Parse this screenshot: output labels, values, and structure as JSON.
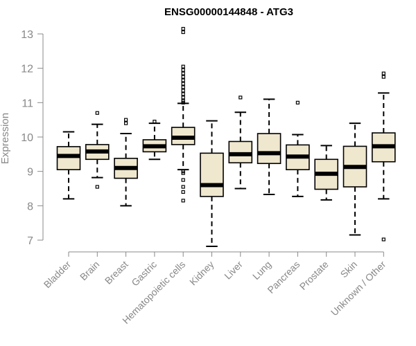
{
  "chart_data": {
    "type": "boxplot",
    "title": "ENSG00000144848 - ATG3",
    "xlabel": "",
    "ylabel": "Expression",
    "ylim": [
      6.7,
      13.2
    ],
    "yticks": [
      7,
      8,
      9,
      10,
      11,
      12,
      13
    ],
    "grid": false,
    "colors": {
      "box_fill": "#efe7ce",
      "box_stroke": "#000000",
      "axis": "#888888"
    },
    "categories": [
      "Bladder",
      "Brain",
      "Breast",
      "Gastric",
      "Hematopoietic cells",
      "Kidney",
      "Liver",
      "Lung",
      "Pancreas",
      "Prostate",
      "Skin",
      "Unknown / Other"
    ],
    "boxes": [
      {
        "whisker_low": 8.2,
        "q1": 9.05,
        "median": 9.45,
        "q3": 9.72,
        "whisker_high": 10.15,
        "outliers": []
      },
      {
        "whisker_low": 8.82,
        "q1": 9.35,
        "median": 9.58,
        "q3": 9.78,
        "whisker_high": 10.37,
        "outliers": [
          8.55,
          10.7
        ]
      },
      {
        "whisker_low": 8.0,
        "q1": 8.8,
        "median": 9.1,
        "q3": 9.38,
        "whisker_high": 10.1,
        "outliers": [
          10.4,
          10.5
        ]
      },
      {
        "whisker_low": 9.35,
        "q1": 9.57,
        "median": 9.73,
        "q3": 9.92,
        "whisker_high": 10.4,
        "outliers": [
          10.45
        ]
      },
      {
        "whisker_low": 9.05,
        "q1": 9.78,
        "median": 9.98,
        "q3": 10.28,
        "whisker_high": 10.98,
        "outliers": [
          8.15,
          8.4,
          8.55,
          8.75,
          8.95,
          9.0,
          11.0,
          11.05,
          11.15,
          11.25,
          11.35,
          11.45,
          11.55,
          11.65,
          11.75,
          11.85,
          11.95,
          12.05,
          13.05,
          13.15
        ]
      },
      {
        "whisker_low": 6.82,
        "q1": 8.27,
        "median": 8.6,
        "q3": 9.53,
        "whisker_high": 10.47,
        "outliers": []
      },
      {
        "whisker_low": 8.5,
        "q1": 9.25,
        "median": 9.5,
        "q3": 9.87,
        "whisker_high": 10.72,
        "outliers": [
          11.15
        ]
      },
      {
        "whisker_low": 8.33,
        "q1": 9.23,
        "median": 9.53,
        "q3": 10.1,
        "whisker_high": 11.1,
        "outliers": []
      },
      {
        "whisker_low": 8.27,
        "q1": 9.05,
        "median": 9.43,
        "q3": 9.77,
        "whisker_high": 10.07,
        "outliers": [
          11.0
        ]
      },
      {
        "whisker_low": 8.17,
        "q1": 8.48,
        "median": 8.93,
        "q3": 9.35,
        "whisker_high": 9.75,
        "outliers": []
      },
      {
        "whisker_low": 7.15,
        "q1": 8.55,
        "median": 9.13,
        "q3": 9.73,
        "whisker_high": 10.4,
        "outliers": []
      },
      {
        "whisker_low": 8.2,
        "q1": 9.28,
        "median": 9.73,
        "q3": 10.12,
        "whisker_high": 11.28,
        "outliers": [
          7.02,
          11.75,
          11.85
        ]
      }
    ]
  }
}
